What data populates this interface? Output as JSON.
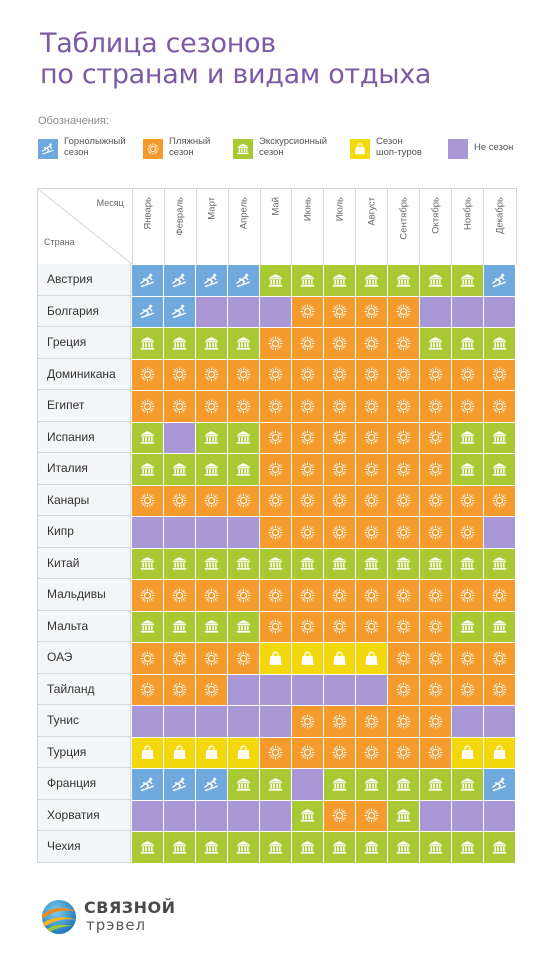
{
  "title": {
    "line1": "Таблица сезонов",
    "line2": "по странам и видам отдыха"
  },
  "legend": {
    "label": "Обозначения:",
    "items": [
      {
        "key": "ski",
        "icon": "skier-icon",
        "text": "Горнолыжный\nсезон",
        "color": "#6fa9de"
      },
      {
        "key": "beach",
        "icon": "sun-icon",
        "text": "Пляжный\nсезон",
        "color": "#f59a2c"
      },
      {
        "key": "exc",
        "icon": "museum-icon",
        "text": "Экскурсионный\nсезон",
        "color": "#a9c934"
      },
      {
        "key": "shop",
        "icon": "shopping-bag-icon",
        "text": "Сезон\nшоп-туров",
        "color": "#f2d80c"
      },
      {
        "key": "none",
        "icon": "",
        "text": "Не сезон",
        "color": "#a998d6"
      }
    ]
  },
  "table": {
    "corner_month": "Месяц",
    "corner_country": "Страна",
    "months": [
      "Январь",
      "Февраль",
      "Март",
      "Апрель",
      "Май",
      "Июнь",
      "Июль",
      "Август",
      "Сентябрь",
      "Октябрь",
      "Ноябрь",
      "Декабрь"
    ],
    "rows": [
      {
        "country": "Австрия",
        "cells": [
          "ski",
          "ski",
          "ski",
          "ski",
          "exc",
          "exc",
          "exc",
          "exc",
          "exc",
          "exc",
          "exc",
          "ski"
        ]
      },
      {
        "country": "Болгария",
        "cells": [
          "ski",
          "ski",
          "none",
          "none",
          "none",
          "beach",
          "beach",
          "beach",
          "beach",
          "none",
          "none",
          "none"
        ]
      },
      {
        "country": "Греция",
        "cells": [
          "exc",
          "exc",
          "exc",
          "exc",
          "beach",
          "beach",
          "beach",
          "beach",
          "beach",
          "exc",
          "exc",
          "exc"
        ]
      },
      {
        "country": "Доминикана",
        "cells": [
          "beach",
          "beach",
          "beach",
          "beach",
          "beach",
          "beach",
          "beach",
          "beach",
          "beach",
          "beach",
          "beach",
          "beach"
        ]
      },
      {
        "country": "Египет",
        "cells": [
          "beach",
          "beach",
          "beach",
          "beach",
          "beach",
          "beach",
          "beach",
          "beach",
          "beach",
          "beach",
          "beach",
          "beach"
        ]
      },
      {
        "country": "Испания",
        "cells": [
          "exc",
          "none",
          "exc",
          "exc",
          "beach",
          "beach",
          "beach",
          "beach",
          "beach",
          "beach",
          "exc",
          "exc"
        ]
      },
      {
        "country": "Италия",
        "cells": [
          "exc",
          "exc",
          "exc",
          "exc",
          "beach",
          "beach",
          "beach",
          "beach",
          "beach",
          "beach",
          "exc",
          "exc"
        ]
      },
      {
        "country": "Канары",
        "cells": [
          "beach",
          "beach",
          "beach",
          "beach",
          "beach",
          "beach",
          "beach",
          "beach",
          "beach",
          "beach",
          "beach",
          "beach"
        ]
      },
      {
        "country": "Кипр",
        "cells": [
          "none",
          "none",
          "none",
          "none",
          "beach",
          "beach",
          "beach",
          "beach",
          "beach",
          "beach",
          "beach",
          "none"
        ]
      },
      {
        "country": "Китай",
        "cells": [
          "exc",
          "exc",
          "exc",
          "exc",
          "exc",
          "exc",
          "exc",
          "exc",
          "exc",
          "exc",
          "exc",
          "exc"
        ]
      },
      {
        "country": "Мальдивы",
        "cells": [
          "beach",
          "beach",
          "beach",
          "beach",
          "beach",
          "beach",
          "beach",
          "beach",
          "beach",
          "beach",
          "beach",
          "beach"
        ]
      },
      {
        "country": "Мальта",
        "cells": [
          "exc",
          "exc",
          "exc",
          "exc",
          "beach",
          "beach",
          "beach",
          "beach",
          "beach",
          "beach",
          "exc",
          "exc"
        ]
      },
      {
        "country": "ОАЭ",
        "cells": [
          "beach",
          "beach",
          "beach",
          "beach",
          "shop",
          "shop",
          "shop",
          "shop",
          "beach",
          "beach",
          "beach",
          "beach"
        ]
      },
      {
        "country": "Тайланд",
        "cells": [
          "beach",
          "beach",
          "beach",
          "none",
          "none",
          "none",
          "none",
          "none",
          "beach",
          "beach",
          "beach",
          "beach"
        ]
      },
      {
        "country": "Тунис",
        "cells": [
          "none",
          "none",
          "none",
          "none",
          "none",
          "beach",
          "beach",
          "beach",
          "beach",
          "beach",
          "none",
          "none"
        ]
      },
      {
        "country": "Турция",
        "cells": [
          "shop",
          "shop",
          "shop",
          "shop",
          "beach",
          "beach",
          "beach",
          "beach",
          "beach",
          "beach",
          "shop",
          "shop"
        ]
      },
      {
        "country": "Франция",
        "cells": [
          "ski",
          "ski",
          "ski",
          "exc",
          "exc",
          "none",
          "exc",
          "exc",
          "exc",
          "exc",
          "exc",
          "ski"
        ]
      },
      {
        "country": "Хорватия",
        "cells": [
          "none",
          "none",
          "none",
          "none",
          "none",
          "exc",
          "beach",
          "beach",
          "exc",
          "none",
          "none",
          "none"
        ]
      },
      {
        "country": "Чехия",
        "cells": [
          "exc",
          "exc",
          "exc",
          "exc",
          "exc",
          "exc",
          "exc",
          "exc",
          "exc",
          "exc",
          "exc",
          "exc"
        ]
      }
    ]
  },
  "logo": {
    "name": "СВЯЗНОЙ",
    "sub": "трэвел"
  }
}
